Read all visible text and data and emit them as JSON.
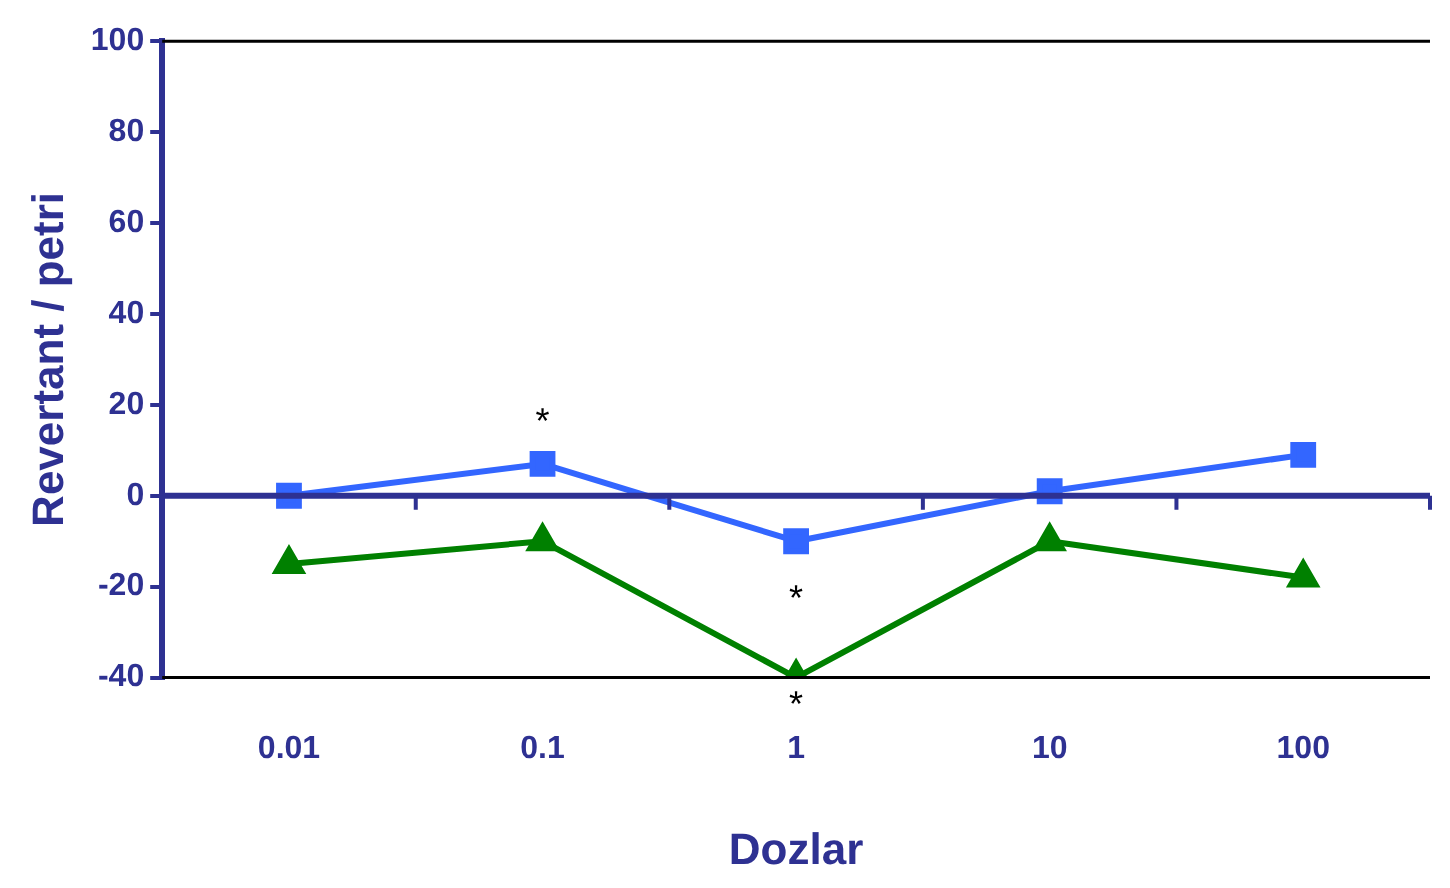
{
  "chart_data": {
    "type": "line",
    "xlabel": "Dozlar",
    "ylabel": "Revertant / petri",
    "categories": [
      "0.01",
      "0.1",
      "1",
      "10",
      "100"
    ],
    "series": [
      {
        "color": "#3366ff",
        "marker": "square",
        "values": [
          0,
          7,
          -10,
          1,
          9
        ]
      },
      {
        "color": "#008000",
        "marker": "triangle",
        "values": [
          -15,
          -10,
          -40,
          -10,
          -18
        ]
      }
    ],
    "ylim": [
      -40,
      100
    ],
    "yticks": [
      -40,
      -20,
      0,
      20,
      40,
      60,
      80,
      100
    ],
    "grid": false,
    "legend": false,
    "ref_lines": [
      {
        "axis": "y",
        "value": 0,
        "color": "#2e3192"
      }
    ],
    "annotations": [
      "*",
      "*",
      "*"
    ]
  }
}
